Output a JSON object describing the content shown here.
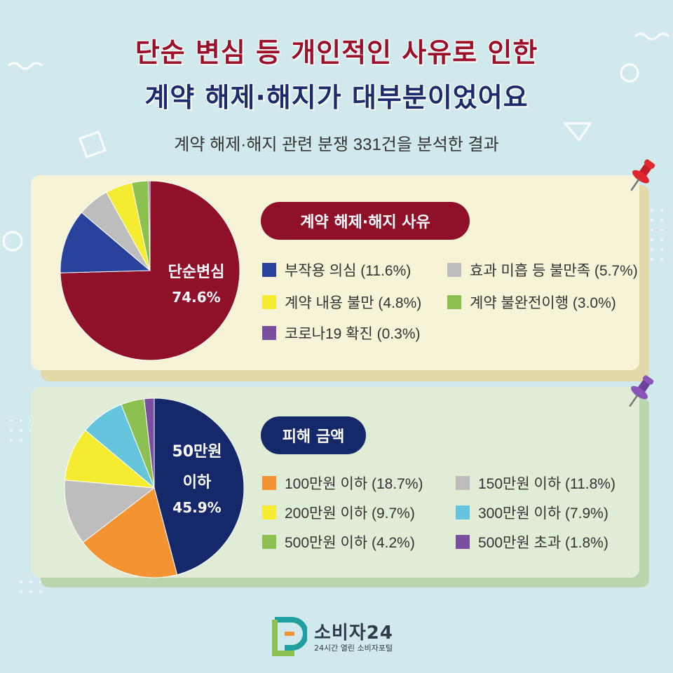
{
  "header": {
    "title_line1": "단순 변심 등 개인적인 사유로 인한",
    "title_line2": "계약 해제·해지가 대부분이었어요",
    "subtitle": "계약 해제·해지 관련 분쟁 331건을 분석한 결과"
  },
  "colors": {
    "background": "#cfe9ec",
    "dark_red": "#8f1029",
    "navy": "#14286a",
    "blue": "#28419a",
    "gray": "#bdbdbd",
    "yellow": "#f5ec32",
    "green": "#8cc152",
    "purple": "#7b4fa0",
    "orange": "#f39332",
    "sky": "#66c5de"
  },
  "chart_data": [
    {
      "type": "pie",
      "title": "계약 해제·해지 사유",
      "categories": [
        "단순변심",
        "부작용 의심",
        "효과 미흡 등 불만족",
        "계약 내용 불만",
        "계약 불완전이행",
        "코로나19 확진"
      ],
      "values": [
        74.6,
        11.6,
        5.7,
        4.8,
        3.0,
        0.3
      ],
      "colors": [
        "#8f1029",
        "#28419a",
        "#bdbdbd",
        "#f5ec32",
        "#8cc152",
        "#7b4fa0"
      ],
      "center_label": {
        "name": "단순변심",
        "value": "74.6%"
      },
      "legend": [
        {
          "label": "부작용 의심 (11.6%)",
          "color": "#28419a"
        },
        {
          "label": "효과 미흡 등 불만족 (5.7%)",
          "color": "#bdbdbd"
        },
        {
          "label": "계약 내용 불만 (4.8%)",
          "color": "#f5ec32"
        },
        {
          "label": "계약 불완전이행 (3.0%)",
          "color": "#8cc152"
        },
        {
          "label": "코로나19 확진 (0.3%)",
          "color": "#7b4fa0"
        }
      ]
    },
    {
      "type": "pie",
      "title": "피해 금액",
      "categories": [
        "50만원 이하",
        "100만원 이하",
        "150만원 이하",
        "200만원 이하",
        "300만원 이하",
        "500만원 이하",
        "500만원 초과"
      ],
      "values": [
        45.9,
        18.7,
        11.8,
        9.7,
        7.9,
        4.2,
        1.8
      ],
      "colors": [
        "#14286a",
        "#f39332",
        "#bdbdbd",
        "#f5ec32",
        "#66c5de",
        "#8cc152",
        "#7b4fa0"
      ],
      "center_label": {
        "name_line1": "50만원",
        "name_line2": "이하",
        "value": "45.9%"
      },
      "legend": [
        {
          "label": "100만원 이하 (18.7%)",
          "color": "#f39332"
        },
        {
          "label": "150만원 이하 (11.8%)",
          "color": "#bdbdbd"
        },
        {
          "label": "200만원 이하 (9.7%)",
          "color": "#f5ec32"
        },
        {
          "label": "300만원 이하 (7.9%)",
          "color": "#66c5de"
        },
        {
          "label": "500만원 이하 (4.2%)",
          "color": "#8cc152"
        },
        {
          "label": "500만원 초과 (1.8%)",
          "color": "#7b4fa0"
        }
      ]
    }
  ],
  "footer": {
    "logo_name": "소비자24",
    "logo_tagline": "24시간 열린 소비자포털"
  }
}
